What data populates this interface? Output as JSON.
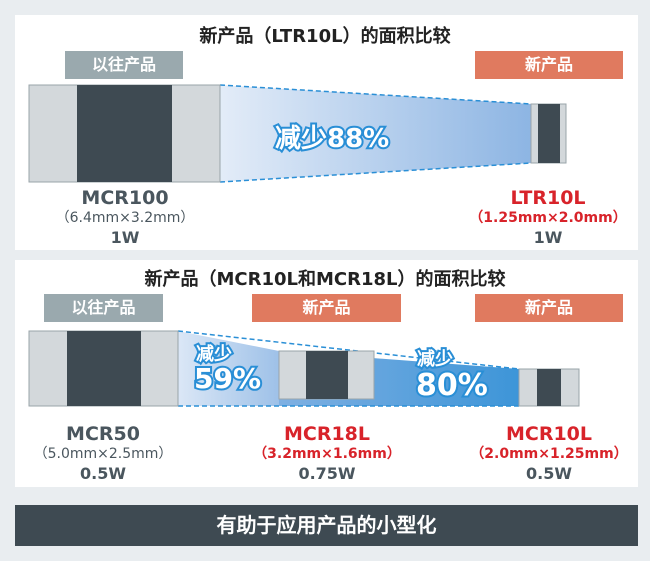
{
  "section1": {
    "title": "新产品（LTR10L）的面积比较",
    "old_tag": "以往产品",
    "new_tag": "新产品",
    "reduction": "减少88%",
    "old": {
      "name": "MCR100",
      "size": "（6.4mm×3.2mm）",
      "power": "1W"
    },
    "new": {
      "name": "LTR10L",
      "size": "（1.25mm×2.0mm）",
      "power": "1W"
    }
  },
  "section2": {
    "title": "新产品（MCR10L和MCR18L）的面积比较",
    "old_tag": "以往产品",
    "new_tag_1": "新产品",
    "new_tag_2": "新产品",
    "reduction_1": {
      "label": "减少",
      "value": "59%"
    },
    "reduction_2": {
      "label": "减少",
      "value": "80%"
    },
    "old": {
      "name": "MCR50",
      "size": "（5.0mm×2.5mm）",
      "power": "0.5W"
    },
    "new_1": {
      "name": "MCR18L",
      "size": "（3.2mm×1.6mm）",
      "power": "0.75W"
    },
    "new_2": {
      "name": "MCR10L",
      "size": "（2.0mm×1.25mm）",
      "power": "0.5W"
    }
  },
  "footer": "有助于应用产品的小型化",
  "colors": {
    "old_tag": "#9aa9ae",
    "new_tag": "#e07a5f",
    "new_text": "#d8232a",
    "chip_body": "#3e4a52",
    "chip_cap": "#d3d8db",
    "footer": "#3e4a52"
  }
}
